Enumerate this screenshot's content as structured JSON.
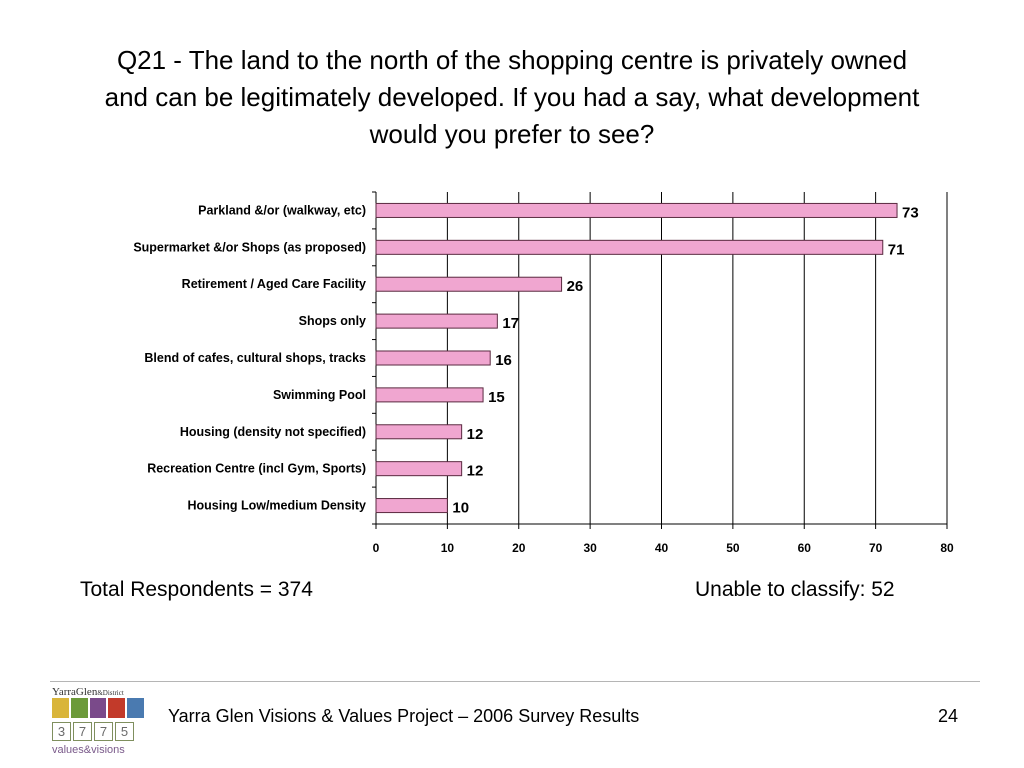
{
  "title_lines": [
    "Q21 - The land to the north of the shopping centre is privately owned",
    "and can be legitimately developed. If you had a say, what development",
    "would you prefer to see?"
  ],
  "chart_data": {
    "type": "bar",
    "orientation": "horizontal",
    "categories": [
      "Parkland &/or (walkway, etc)",
      "Supermarket &/or Shops (as proposed)",
      "Retirement / Aged Care Facility",
      "Shops only",
      "Blend of cafes, cultural shops, tracks",
      "Swimming Pool",
      "Housing (density not specified)",
      "Recreation Centre (incl Gym, Sports)",
      "Housing Low/medium Density"
    ],
    "values": [
      73,
      71,
      26,
      17,
      16,
      15,
      12,
      12,
      10
    ],
    "xlim": [
      0,
      80
    ],
    "xticks": [
      0,
      10,
      20,
      30,
      40,
      50,
      60,
      70,
      80
    ],
    "grid": true,
    "legend": "none",
    "bar_color": "#f0a6d0",
    "bar_border": "#5a2a40"
  },
  "footnotes": {
    "left": "Total Respondents = 374",
    "right": "Unable to classify: 52"
  },
  "footer": {
    "text": "Yarra Glen Visions & Values Project – 2006 Survey Results",
    "page_number": "24"
  },
  "logo": {
    "name": "YarraGlen",
    "name_suffix": "&District",
    "digits": [
      "3",
      "7",
      "7",
      "5"
    ],
    "tagline": "values&visions",
    "icon_colors": [
      "#d9b53a",
      "#6c9a3a",
      "#7a4a8a",
      "#c23a2a",
      "#4a7ab0"
    ]
  }
}
